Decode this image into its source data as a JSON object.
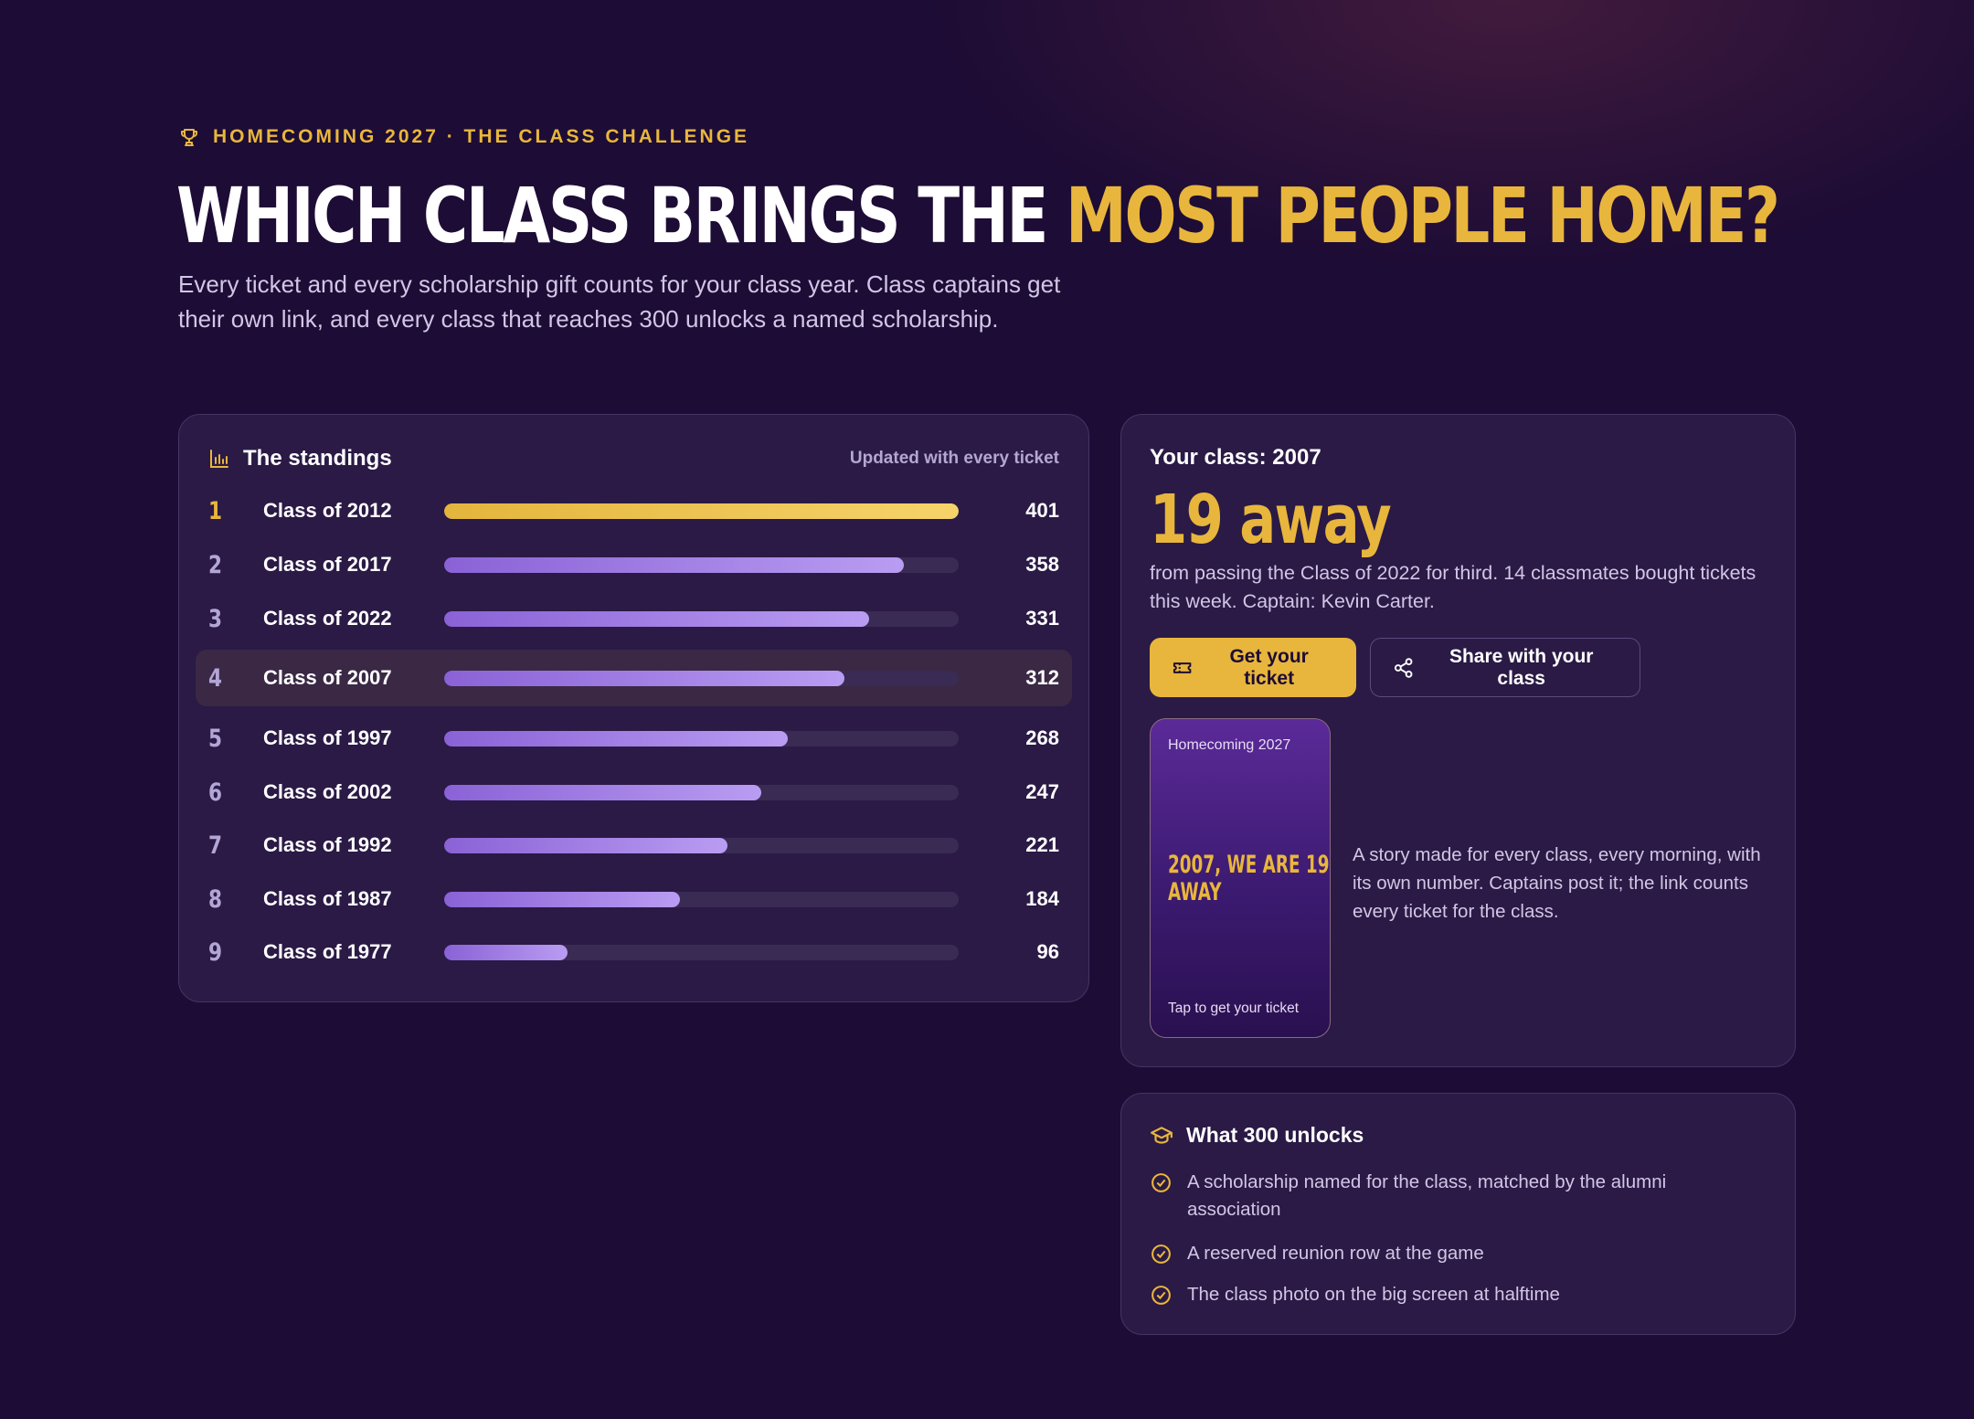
{
  "header": {
    "eyebrow": "HOMECOMING 2027 · THE CLASS CHALLENGE",
    "headline_white": "WHICH CLASS BRINGS THE",
    "headline_gold": "MOST PEOPLE HOME?",
    "subhead": "Every ticket and every scholarship gift counts for your class year. Class captains get their own link, and every class that reaches 300 unlocks a named scholarship."
  },
  "standings": {
    "title": "The standings",
    "updated": "Updated with every ticket",
    "max": 401,
    "rows": [
      {
        "rank": "1",
        "label": "Class of 2012",
        "value": 401,
        "gold": true
      },
      {
        "rank": "2",
        "label": "Class of 2017",
        "value": 358
      },
      {
        "rank": "3",
        "label": "Class of 2022",
        "value": 331
      },
      {
        "rank": "4",
        "label": "Class of 2007",
        "value": 312,
        "highlight": true
      },
      {
        "rank": "5",
        "label": "Class of 1997",
        "value": 268
      },
      {
        "rank": "6",
        "label": "Class of 2002",
        "value": 247
      },
      {
        "rank": "7",
        "label": "Class of 1992",
        "value": 221
      },
      {
        "rank": "8",
        "label": "Class of 1987",
        "value": 184
      },
      {
        "rank": "9",
        "label": "Class of 1977",
        "value": 96
      }
    ]
  },
  "your_class": {
    "label": "Your class: 2007",
    "big": "19 away",
    "desc": "from passing the Class of 2022 for third. 14 classmates bought tickets this week. Captain: Kevin Carter.",
    "ticket_button": "Get your ticket",
    "share_button": "Share with your class",
    "story_top": "Homecoming 2027",
    "story_mid": "2007, WE ARE 19 AWAY",
    "story_bottom": "Tap to get your ticket",
    "story_caption": "A story made for every class, every morning, with its own number. Captains post it; the link counts every ticket for the class."
  },
  "unlocks": {
    "title": "What 300 unlocks",
    "items": [
      "A scholarship named for the class, matched by the alumni association",
      "A reserved reunion row at the game",
      "The class photo on the big screen at halftime"
    ]
  },
  "colors": {
    "background": "#1d0c35",
    "accent_gold": "#e8b63c",
    "bar_purple": "#a27fe6",
    "card": "#2a1a45"
  }
}
